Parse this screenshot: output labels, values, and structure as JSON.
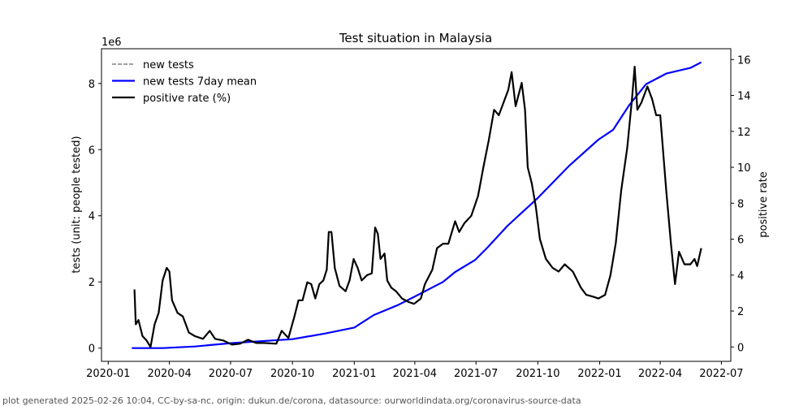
{
  "chart_data": {
    "type": "line",
    "title": "Test situation in Malaysia",
    "ylabel": "tests (unit: people tested)",
    "ylabel_right": "positive rate",
    "y_offset_label": "1e6",
    "x_reference_date": "2020-01-01",
    "xlim_days": [
      -10,
      926
    ],
    "ylim": [
      -0.4,
      9.05
    ],
    "ylim_right": [
      -0.8,
      16.6
    ],
    "x_ticks": [
      {
        "label": "2020-01",
        "day": 0
      },
      {
        "label": "2020-04",
        "day": 91
      },
      {
        "label": "2020-07",
        "day": 182
      },
      {
        "label": "2020-10",
        "day": 274
      },
      {
        "label": "2021-01",
        "day": 366
      },
      {
        "label": "2021-04",
        "day": 456
      },
      {
        "label": "2021-07",
        "day": 547
      },
      {
        "label": "2021-10",
        "day": 639
      },
      {
        "label": "2022-01",
        "day": 731
      },
      {
        "label": "2022-04",
        "day": 821
      },
      {
        "label": "2022-07",
        "day": 912
      }
    ],
    "y_ticks": [
      "0",
      "2",
      "4",
      "6",
      "8"
    ],
    "y_ticks_right": [
      "0",
      "2",
      "4",
      "6",
      "8",
      "10",
      "12",
      "14",
      "16"
    ],
    "legend_position": "top-left",
    "series": [
      {
        "name": "new tests",
        "color": "#808080",
        "style": "dashed",
        "axis": "left",
        "days": [],
        "values": []
      },
      {
        "name": "new tests 7day mean",
        "color": "#0000ff",
        "style": "solid",
        "axis": "left",
        "days": [
          35,
          81,
          129,
          182,
          274,
          322,
          366,
          395,
          431,
          455,
          498,
          516,
          546,
          564,
          594,
          638,
          685,
          729,
          751,
          775,
          800,
          830,
          866,
          882
        ],
        "values": [
          0,
          0,
          0.05,
          0.15,
          0.27,
          0.44,
          0.62,
          1.0,
          1.3,
          1.55,
          2.0,
          2.3,
          2.67,
          3.04,
          3.7,
          4.52,
          5.5,
          6.3,
          6.6,
          7.35,
          7.98,
          8.3,
          8.47,
          8.64
        ]
      },
      {
        "name": "positive rate (%)",
        "color": "#000000",
        "style": "solid",
        "axis": "right",
        "days": [
          39,
          41,
          45,
          51,
          57,
          63,
          69,
          75,
          81,
          87,
          91,
          95,
          103,
          111,
          120,
          129,
          141,
          151,
          159,
          171,
          184,
          196,
          208,
          220,
          232,
          250,
          258,
          268,
          277,
          283,
          289,
          296,
          302,
          308,
          314,
          320,
          325,
          328,
          332,
          337,
          344,
          353,
          359,
          365,
          371,
          377,
          385,
          392,
          397,
          401,
          405,
          411,
          415,
          421,
          428,
          437,
          447,
          455,
          465,
          471,
          482,
          489,
          498,
          506,
          516,
          522,
          530,
          540,
          550,
          558,
          566,
          574,
          581,
          588,
          595,
          600,
          606,
          615,
          620,
          624,
          630,
          636,
          642,
          651,
          661,
          670,
          679,
          691,
          703,
          711,
          721,
          729,
          739,
          747,
          755,
          763,
          772,
          779,
          783,
          787,
          793,
          802,
          809,
          815,
          821,
          830,
          837,
          843,
          849,
          857,
          866,
          872,
          876,
          882
        ],
        "values": [
          3.2,
          1.26,
          1.5,
          0.6,
          0.36,
          0,
          1.26,
          1.9,
          3.7,
          4.4,
          4.2,
          2.6,
          1.9,
          1.7,
          0.8,
          0.6,
          0.45,
          0.9,
          0.45,
          0.36,
          0.13,
          0.18,
          0.4,
          0.22,
          0.22,
          0.18,
          0.9,
          0.5,
          1.7,
          2.6,
          2.6,
          3.6,
          3.5,
          2.7,
          3.5,
          3.7,
          4.3,
          6.4,
          6.4,
          4.4,
          3.4,
          3.1,
          3.7,
          4.9,
          4.4,
          3.7,
          4.0,
          4.1,
          6.65,
          6.3,
          4.9,
          5.2,
          3.7,
          3.3,
          3.1,
          2.7,
          2.5,
          2.4,
          2.7,
          3.5,
          4.3,
          5.5,
          5.75,
          5.75,
          7.0,
          6.4,
          6.9,
          7.3,
          8.4,
          10.0,
          11.5,
          13.2,
          12.9,
          13.6,
          14.3,
          15.3,
          13.4,
          14.7,
          13.2,
          10.0,
          9.1,
          7.8,
          6.0,
          4.9,
          4.4,
          4.2,
          4.6,
          4.2,
          3.3,
          2.9,
          2.8,
          2.7,
          2.9,
          4.0,
          5.8,
          8.7,
          11.1,
          13.8,
          15.6,
          13.2,
          13.6,
          14.5,
          13.8,
          12.9,
          12.9,
          8.7,
          5.75,
          3.5,
          5.3,
          4.6,
          4.6,
          4.9,
          4.5,
          5.5
        ]
      }
    ]
  },
  "footer": "plot generated 2025-02-26 10:04, CC-by-sa-nc, origin: dukun.de/corona, datasource: ourworldindata.org/coronavirus-source-data"
}
